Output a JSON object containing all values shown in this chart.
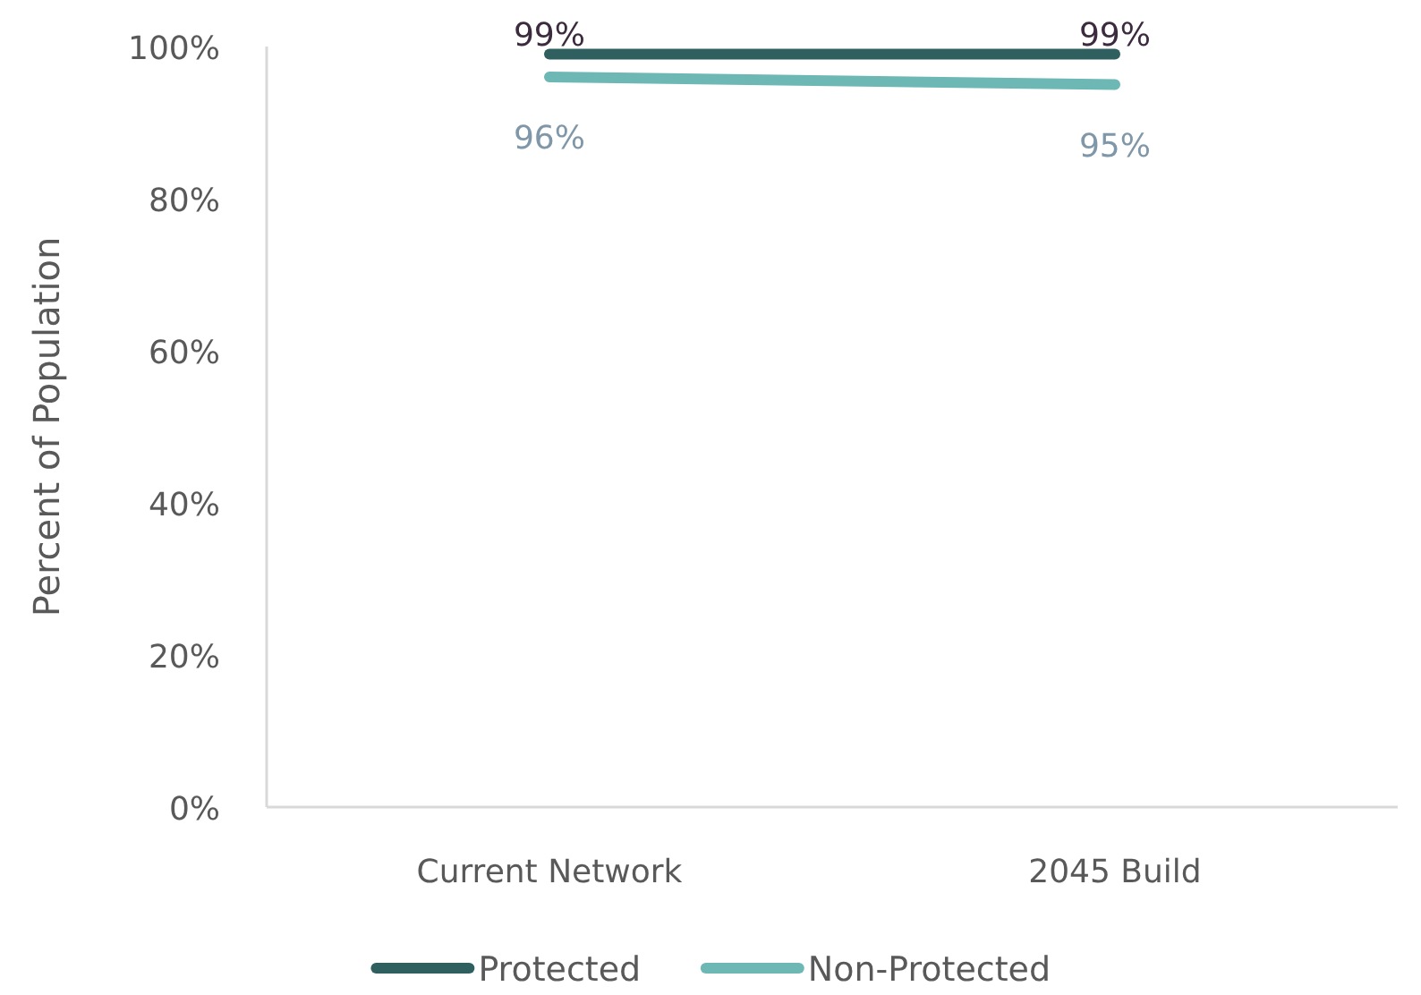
{
  "chart_data": {
    "type": "line",
    "ylabel": "Percent of Population",
    "categories": [
      "Current Network",
      "2045 Build"
    ],
    "series": [
      {
        "name": "Protected",
        "color": "#2f5f5e",
        "values": [
          99,
          99
        ],
        "value_labels": [
          "99%",
          "99%"
        ]
      },
      {
        "name": "Non-Protected",
        "color": "#6db7b5",
        "values": [
          96,
          95
        ],
        "value_labels": [
          "96%",
          "95%"
        ]
      }
    ],
    "ylim": [
      0,
      100
    ],
    "yticks": [
      {
        "value": 0,
        "label": "0%"
      },
      {
        "value": 20,
        "label": "20%"
      },
      {
        "value": 40,
        "label": "40%"
      },
      {
        "value": 60,
        "label": "60%"
      },
      {
        "value": 80,
        "label": "80%"
      },
      {
        "value": 100,
        "label": "100%"
      }
    ],
    "legend": "bottom",
    "grid": false,
    "marker": "none",
    "line_style": "solid"
  }
}
